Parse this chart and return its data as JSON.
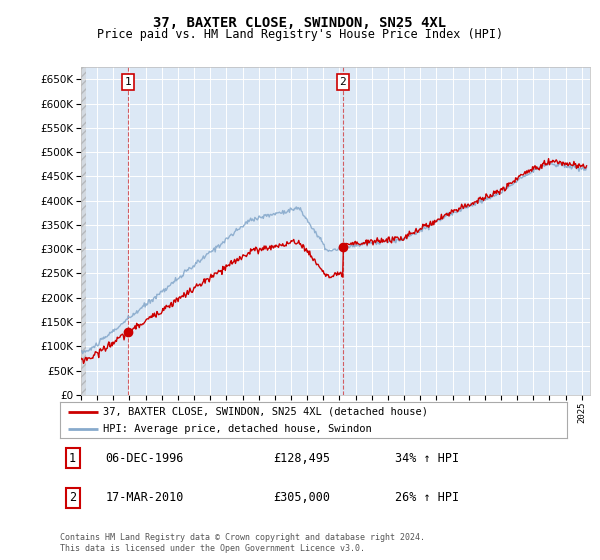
{
  "title": "37, BAXTER CLOSE, SWINDON, SN25 4XL",
  "subtitle": "Price paid vs. HM Land Registry's House Price Index (HPI)",
  "ylim": [
    0,
    675000
  ],
  "yticks": [
    0,
    50000,
    100000,
    150000,
    200000,
    250000,
    300000,
    350000,
    400000,
    450000,
    500000,
    550000,
    600000,
    650000
  ],
  "xlim": [
    1994,
    2025.5
  ],
  "background_color": "#ffffff",
  "plot_bg_color": "#dce8f5",
  "grid_color": "#ffffff",
  "purchase1": {
    "price": 128495,
    "x": 1996.93
  },
  "purchase2": {
    "price": 305000,
    "x": 2010.21
  },
  "legend_entry1": "37, BAXTER CLOSE, SWINDON, SN25 4XL (detached house)",
  "legend_entry2": "HPI: Average price, detached house, Swindon",
  "annotation1": {
    "label": "1",
    "date": "06-DEC-1996",
    "price": "£128,495",
    "pct": "34% ↑ HPI"
  },
  "annotation2": {
    "label": "2",
    "date": "17-MAR-2010",
    "price": "£305,000",
    "pct": "26% ↑ HPI"
  },
  "footer": "Contains HM Land Registry data © Crown copyright and database right 2024.\nThis data is licensed under the Open Government Licence v3.0.",
  "line_color_red": "#cc0000",
  "line_color_blue": "#88aacc",
  "dot_color_red": "#cc0000",
  "vline_color": "#cc0000",
  "title_fontsize": 10,
  "subtitle_fontsize": 8.5
}
